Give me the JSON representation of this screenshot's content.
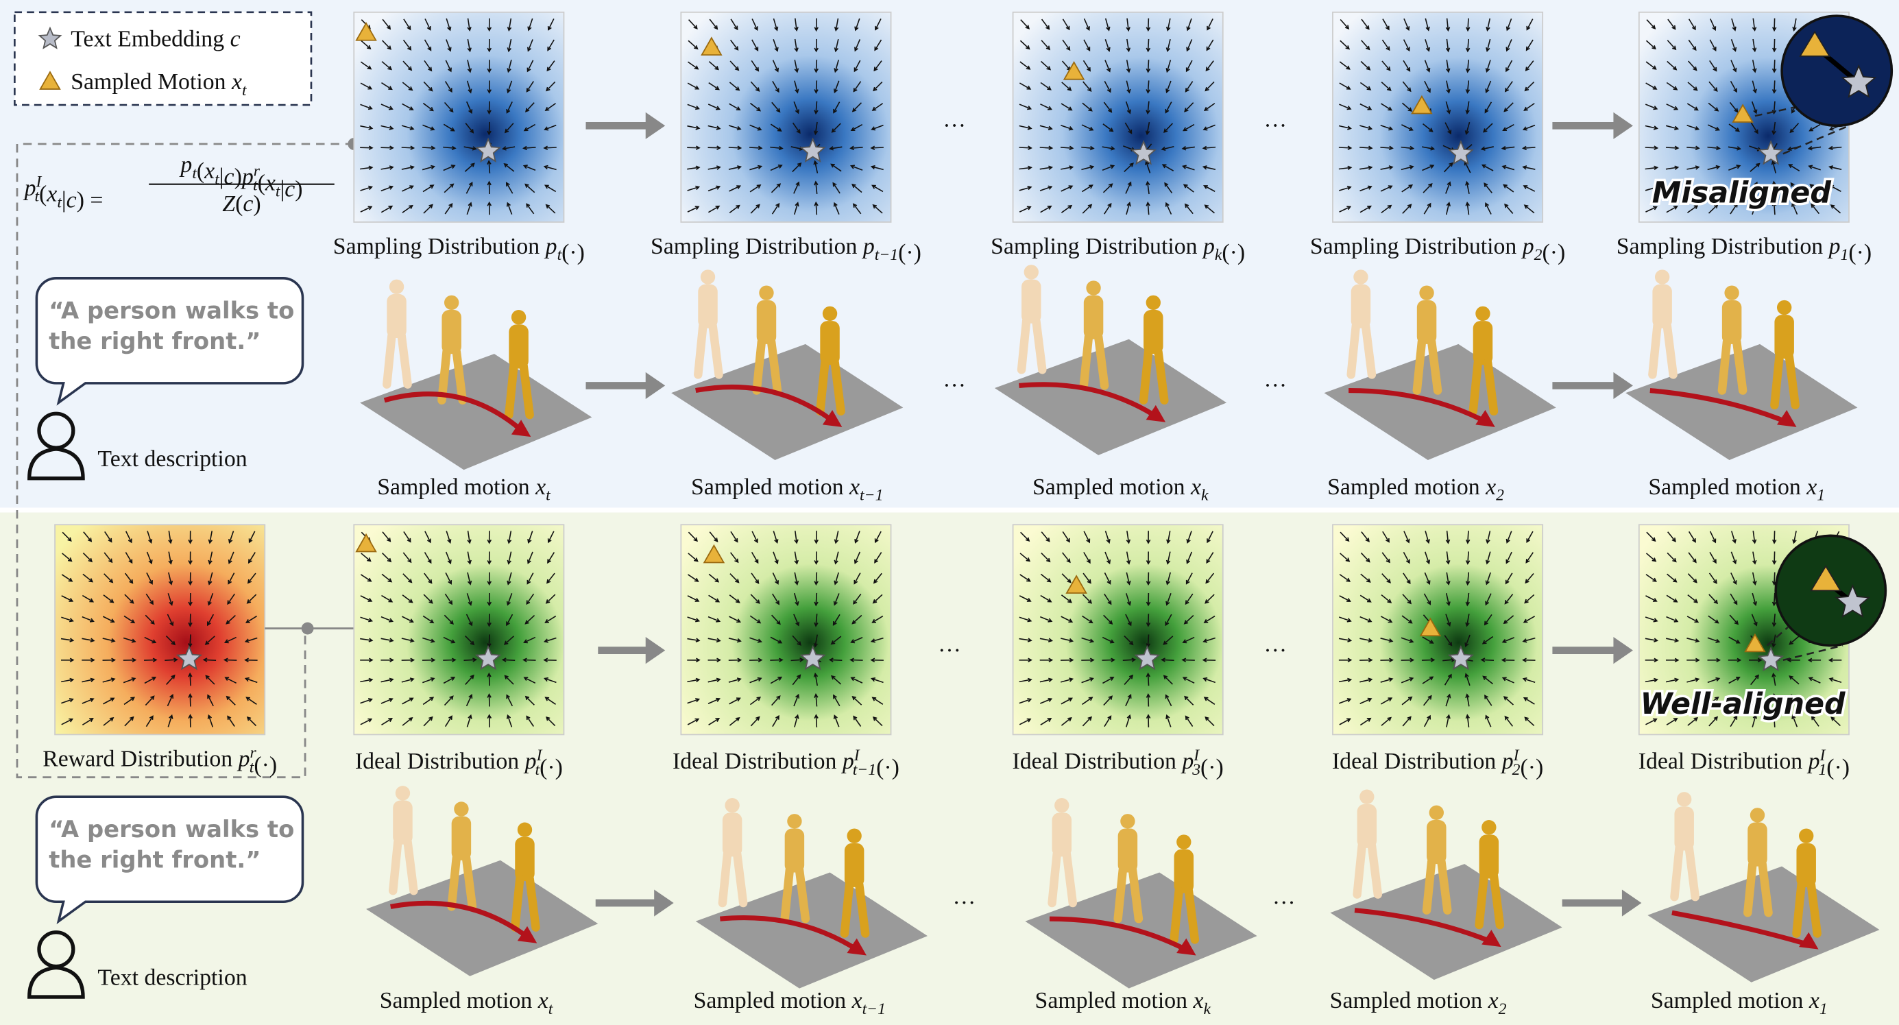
{
  "legend": {
    "embedding": [
      "Text Embedding ",
      {
        "i": "c"
      }
    ],
    "motion": [
      "Sampled Motion ",
      {
        "i": "x",
        "sub": "t"
      }
    ]
  },
  "formula": {
    "lhs": [
      {
        "i": "p",
        "sub": "t",
        "sup": "I"
      },
      "(",
      {
        "i": "x",
        "sub": "t"
      },
      "|",
      {
        "i": "c"
      },
      ") ="
    ],
    "numerator": [
      {
        "i": "p",
        "sub": "t"
      },
      "(",
      {
        "i": "x",
        "sub": "t"
      },
      "|",
      {
        "i": "c"
      },
      ")",
      {
        "i": "p",
        "sub": "t",
        "sup": "r"
      },
      "(",
      {
        "i": "x",
        "sub": "t"
      },
      "|",
      {
        "i": "c"
      },
      ")"
    ],
    "denominator": [
      {
        "i": "Z"
      },
      "(",
      {
        "i": "c"
      },
      ")"
    ]
  },
  "ellipsis": "···",
  "top": {
    "distributions": [
      [
        "Sampling Distribution ",
        {
          "i": "p",
          "sub": "t"
        },
        "(·)"
      ],
      [
        "Sampling Distribution ",
        {
          "i": "p",
          "sub": "t−1"
        },
        "(·)"
      ],
      [
        "Sampling Distribution ",
        {
          "i": "p",
          "sub": "k"
        },
        "(·)"
      ],
      [
        "Sampling Distribution ",
        {
          "i": "p",
          "sub": "2"
        },
        "(·)"
      ],
      [
        "Sampling Distribution ",
        {
          "i": "p",
          "sub": "1"
        },
        "(·)"
      ]
    ],
    "motions": [
      [
        "Sampled motion ",
        {
          "i": "x",
          "sub": "t"
        }
      ],
      [
        "Sampled motion ",
        {
          "i": "x",
          "sub": "t−1"
        }
      ],
      [
        "Sampled motion ",
        {
          "i": "x",
          "sub": "k"
        }
      ],
      [
        "Sampled motion ",
        {
          "i": "x",
          "sub": "2"
        }
      ],
      [
        "Sampled motion ",
        {
          "i": "x",
          "sub": "1"
        }
      ]
    ],
    "quote": [
      "“A person walks to",
      "the right front.”"
    ],
    "speaker": "Text description",
    "status": "Misaligned"
  },
  "bottom": {
    "reward": [
      "Reward Distribution ",
      {
        "i": "p",
        "sub": "t",
        "sup": "r"
      },
      "(·)"
    ],
    "distributions": [
      [
        "Ideal Distribution ",
        {
          "i": "p",
          "sub": "t",
          "sup": "I"
        },
        "(·)"
      ],
      [
        "Ideal Distribution ",
        {
          "i": "p",
          "sub": "t−1",
          "sup": "I"
        },
        "(·)"
      ],
      [
        "Ideal Distribution ",
        {
          "i": "p",
          "sub": "3",
          "sup": "I"
        },
        "(·)"
      ],
      [
        "Ideal Distribution ",
        {
          "i": "p",
          "sub": "2",
          "sup": "I"
        },
        "(·)"
      ],
      [
        "Ideal Distribution ",
        {
          "i": "p",
          "sub": "1",
          "sup": "I"
        },
        "(·)"
      ]
    ],
    "motions": [
      [
        "Sampled motion ",
        {
          "i": "x",
          "sub": "t"
        }
      ],
      [
        "Sampled motion ",
        {
          "i": "x",
          "sub": "t−1"
        }
      ],
      [
        "Sampled motion ",
        {
          "i": "x",
          "sub": "k"
        }
      ],
      [
        "Sampled motion ",
        {
          "i": "x",
          "sub": "2"
        }
      ],
      [
        "Sampled motion ",
        {
          "i": "x",
          "sub": "1"
        }
      ]
    ],
    "quote": [
      "“A person walks to",
      "the right front.”"
    ],
    "speaker": "Text description",
    "status": "Well-aligned"
  }
}
